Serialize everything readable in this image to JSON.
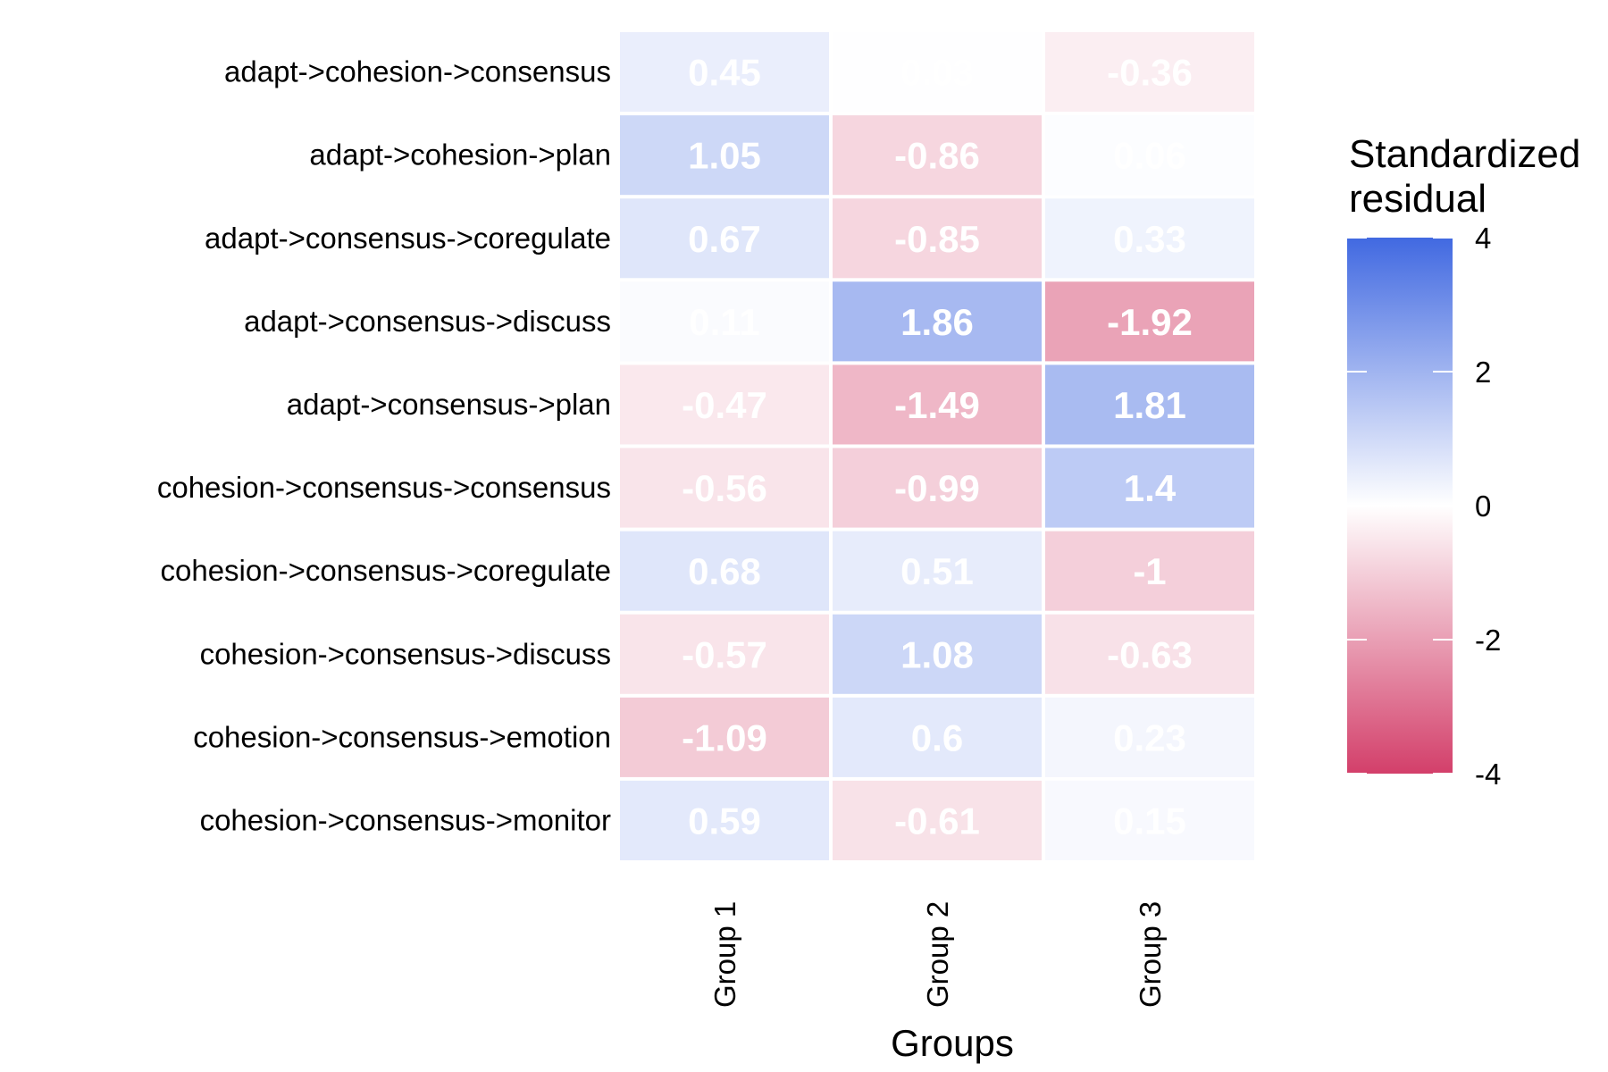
{
  "chart_data": {
    "type": "heatmap",
    "title": "",
    "xlabel": "Groups",
    "ylabel": "",
    "columns": [
      "Group 1",
      "Group 2",
      "Group 3"
    ],
    "rows": [
      "adapt->cohesion->consensus",
      "adapt->cohesion->plan",
      "adapt->consensus->coregulate",
      "adapt->consensus->discuss",
      "adapt->consensus->plan",
      "cohesion->consensus->consensus",
      "cohesion->consensus->coregulate",
      "cohesion->consensus->discuss",
      "cohesion->consensus->emotion",
      "cohesion->consensus->monitor"
    ],
    "values": [
      [
        0.45,
        0.03,
        -0.36
      ],
      [
        1.05,
        -0.86,
        0.06
      ],
      [
        0.67,
        -0.85,
        0.33
      ],
      [
        0.11,
        1.86,
        -1.92
      ],
      [
        -0.47,
        -1.49,
        1.81
      ],
      [
        -0.56,
        -0.99,
        1.4
      ],
      [
        0.68,
        0.51,
        -1
      ],
      [
        -0.57,
        1.08,
        -0.63
      ],
      [
        -1.09,
        0.6,
        0.23
      ],
      [
        0.59,
        -0.61,
        0.15
      ]
    ],
    "value_labels": [
      [
        "0.45",
        "0.03",
        "-0.36"
      ],
      [
        "1.05",
        "-0.86",
        "0.06"
      ],
      [
        "0.67",
        "-0.85",
        "0.33"
      ],
      [
        "0.11",
        "1.86",
        "-1.92"
      ],
      [
        "-0.47",
        "-1.49",
        "1.81"
      ],
      [
        "-0.56",
        "-0.99",
        "1.4"
      ],
      [
        "0.68",
        "0.51",
        "-1"
      ],
      [
        "-0.57",
        "1.08",
        "-0.63"
      ],
      [
        "-1.09",
        "0.6",
        "0.23"
      ],
      [
        "0.59",
        "-0.61",
        "0.15"
      ]
    ],
    "legend": {
      "title_lines": [
        "Standardized",
        "residual"
      ],
      "ticks": [
        4,
        2,
        0,
        -2,
        -4
      ],
      "tick_labels": [
        "4",
        "2",
        "0",
        "-2",
        "-4"
      ],
      "range": [
        -4,
        4
      ],
      "placement": "right"
    },
    "colors": {
      "high": "#4169E1",
      "mid": "#FFFFFF",
      "low": "#D33F6A",
      "cell_text": "#FFFFFF",
      "cell_border": "#FFFFFF"
    }
  }
}
